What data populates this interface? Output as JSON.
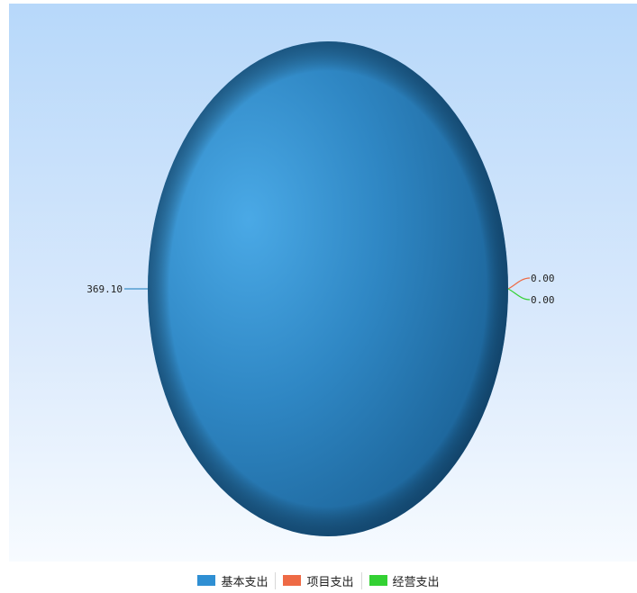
{
  "chart_data": {
    "type": "pie",
    "categories": [
      "基本支出",
      "项目支出",
      "经营支出"
    ],
    "values": [
      369.1,
      0.0,
      0.0
    ],
    "data_labels": [
      "369.10",
      "0.00",
      "0.00"
    ],
    "colors": [
      "#2f8fd3",
      "#ee6a45",
      "#33d133"
    ],
    "legend_position": "bottom",
    "title": "",
    "grid": false
  }
}
